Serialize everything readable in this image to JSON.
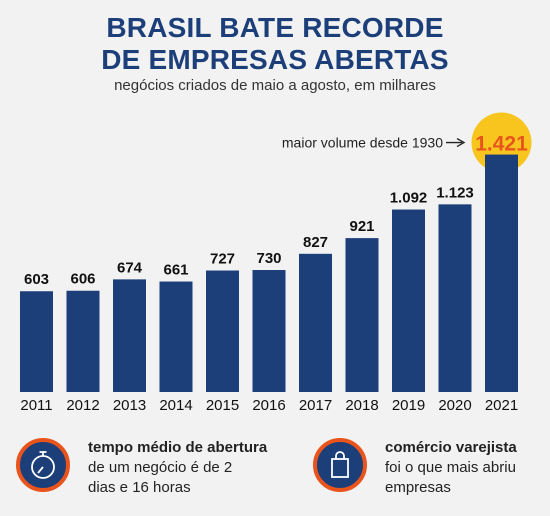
{
  "header": {
    "title_line1": "BRASIL BATE RECORDE",
    "title_line2": "DE EMPRESAS ABERTAS",
    "subtitle": "negócios criados de maio a agosto, em milhares"
  },
  "chart_data": {
    "type": "bar",
    "title": "BRASIL BATE RECORDE DE EMPRESAS ABERTAS",
    "subtitle": "negócios criados de maio a agosto, em milhares",
    "categories": [
      "2011",
      "2012",
      "2013",
      "2014",
      "2015",
      "2016",
      "2017",
      "2018",
      "2019",
      "2020",
      "2021"
    ],
    "values": [
      603,
      606,
      674,
      661,
      727,
      730,
      827,
      921,
      1092,
      1123,
      1421
    ],
    "value_labels": [
      "603",
      "606",
      "674",
      "661",
      "727",
      "730",
      "827",
      "921",
      "1.092",
      "1.123",
      "1.421"
    ],
    "xlabel": "",
    "ylabel": "",
    "grid": false,
    "bar_color": "#1c3f7a",
    "highlight_color": "#e8541c",
    "highlight_bg": "#f7c51e",
    "annotation": {
      "text": "maior volume desde 1930",
      "target": "2021"
    }
  },
  "info": {
    "left": {
      "icon": "stopwatch-icon",
      "bold": "tempo médio de abertura",
      "line2": "de um negócio é de 2",
      "line3": "dias e 16 horas"
    },
    "right": {
      "icon": "shopping-bag-icon",
      "bold": "comércio varejista",
      "line2": "foi o que mais abriu",
      "line3": "empresas"
    }
  },
  "colors": {
    "navy": "#1c3f7a",
    "orange": "#e8541c",
    "yellow": "#f7c51e",
    "background": "#f2f2f2"
  }
}
